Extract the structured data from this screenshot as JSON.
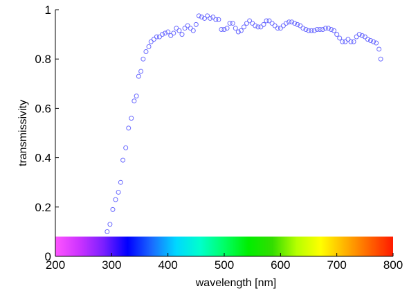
{
  "chart_data": {
    "type": "scatter",
    "xlabel": "wavelength [nm]",
    "ylabel": "transmissivity",
    "xlim": [
      200,
      800
    ],
    "ylim": [
      0,
      1
    ],
    "x_ticks": [
      {
        "value": 200,
        "label": "200"
      },
      {
        "value": 300,
        "label": "300"
      },
      {
        "value": 400,
        "label": "400"
      },
      {
        "value": 500,
        "label": "500"
      },
      {
        "value": 600,
        "label": "600"
      },
      {
        "value": 700,
        "label": "700"
      },
      {
        "value": 800,
        "label": "800"
      }
    ],
    "y_ticks": [
      {
        "value": 0,
        "label": "0"
      },
      {
        "value": 0.2,
        "label": "0.2"
      },
      {
        "value": 0.4,
        "label": "0.4"
      },
      {
        "value": 0.6,
        "label": "0.6"
      },
      {
        "value": 0.8,
        "label": "0.8"
      },
      {
        "value": 1,
        "label": "1"
      }
    ],
    "grid": false,
    "marker": "hollow circle",
    "marker_color": "#6a6aff",
    "spectrum_bar": {
      "y_range": [
        0,
        0.08
      ],
      "x_range": [
        200,
        800
      ],
      "colors": [
        "#ff55ff",
        "#cc33ff",
        "#7a1fff",
        "#0000ff",
        "#1a6bff",
        "#00d7ff",
        "#00ffcc",
        "#00ff66",
        "#00ee00",
        "#33dd00",
        "#b6ff00",
        "#ffff00",
        "#ffb300",
        "#ff6600",
        "#ff1a00"
      ]
    },
    "series": [
      {
        "points": [
          [
            292,
            0.1
          ],
          [
            297,
            0.13
          ],
          [
            302,
            0.19
          ],
          [
            307,
            0.23
          ],
          [
            312,
            0.26
          ],
          [
            316,
            0.3
          ],
          [
            320,
            0.39
          ],
          [
            325,
            0.44
          ],
          [
            330,
            0.52
          ],
          [
            335,
            0.56
          ],
          [
            340,
            0.63
          ],
          [
            344,
            0.65
          ],
          [
            348,
            0.73
          ],
          [
            352,
            0.75
          ],
          [
            356,
            0.8
          ],
          [
            361,
            0.83
          ],
          [
            366,
            0.85
          ],
          [
            370,
            0.87
          ],
          [
            375,
            0.88
          ],
          [
            380,
            0.89
          ],
          [
            385,
            0.89
          ],
          [
            390,
            0.9
          ],
          [
            395,
            0.905
          ],
          [
            400,
            0.91
          ],
          [
            405,
            0.895
          ],
          [
            410,
            0.905
          ],
          [
            415,
            0.925
          ],
          [
            420,
            0.915
          ],
          [
            425,
            0.9
          ],
          [
            430,
            0.925
          ],
          [
            435,
            0.935
          ],
          [
            440,
            0.925
          ],
          [
            445,
            0.915
          ],
          [
            450,
            0.94
          ],
          [
            455,
            0.975
          ],
          [
            460,
            0.97
          ],
          [
            465,
            0.965
          ],
          [
            470,
            0.975
          ],
          [
            475,
            0.965
          ],
          [
            480,
            0.97
          ],
          [
            485,
            0.96
          ],
          [
            490,
            0.96
          ],
          [
            495,
            0.92
          ],
          [
            500,
            0.92
          ],
          [
            505,
            0.925
          ],
          [
            510,
            0.945
          ],
          [
            515,
            0.945
          ],
          [
            520,
            0.925
          ],
          [
            525,
            0.91
          ],
          [
            530,
            0.915
          ],
          [
            535,
            0.93
          ],
          [
            540,
            0.945
          ],
          [
            545,
            0.955
          ],
          [
            550,
            0.945
          ],
          [
            555,
            0.935
          ],
          [
            560,
            0.93
          ],
          [
            565,
            0.93
          ],
          [
            570,
            0.94
          ],
          [
            575,
            0.955
          ],
          [
            580,
            0.955
          ],
          [
            585,
            0.945
          ],
          [
            590,
            0.935
          ],
          [
            595,
            0.925
          ],
          [
            600,
            0.925
          ],
          [
            605,
            0.935
          ],
          [
            610,
            0.945
          ],
          [
            615,
            0.95
          ],
          [
            620,
            0.95
          ],
          [
            625,
            0.945
          ],
          [
            630,
            0.94
          ],
          [
            635,
            0.935
          ],
          [
            640,
            0.925
          ],
          [
            645,
            0.92
          ],
          [
            650,
            0.915
          ],
          [
            655,
            0.915
          ],
          [
            660,
            0.915
          ],
          [
            665,
            0.92
          ],
          [
            670,
            0.92
          ],
          [
            675,
            0.92
          ],
          [
            680,
            0.925
          ],
          [
            685,
            0.925
          ],
          [
            690,
            0.92
          ],
          [
            695,
            0.915
          ],
          [
            700,
            0.9
          ],
          [
            705,
            0.885
          ],
          [
            710,
            0.87
          ],
          [
            715,
            0.87
          ],
          [
            720,
            0.88
          ],
          [
            725,
            0.87
          ],
          [
            730,
            0.87
          ],
          [
            735,
            0.89
          ],
          [
            740,
            0.9
          ],
          [
            745,
            0.895
          ],
          [
            750,
            0.89
          ],
          [
            755,
            0.88
          ],
          [
            760,
            0.875
          ],
          [
            765,
            0.87
          ],
          [
            770,
            0.865
          ],
          [
            775,
            0.84
          ],
          [
            778,
            0.8
          ]
        ]
      }
    ]
  }
}
